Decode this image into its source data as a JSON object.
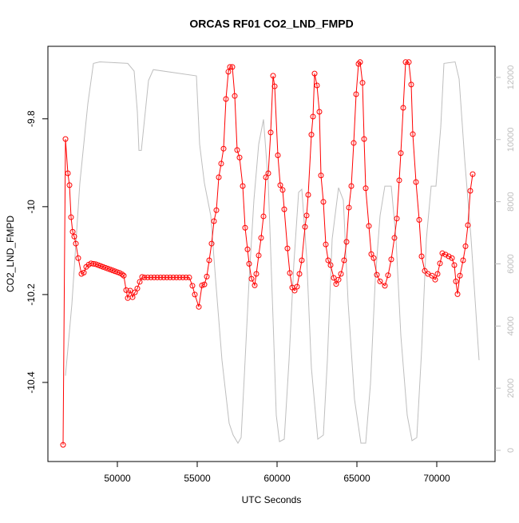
{
  "chart_data": {
    "type": "line",
    "title": "ORCAS RF01 CO2_LND_FMPD",
    "x_label": "UTC Seconds",
    "y_label": "CO2_LND_FMPD",
    "xlim": [
      45650,
      73650
    ],
    "xticks": [
      50000,
      55000,
      60000,
      65000,
      70000
    ],
    "ylim": [
      -10.58,
      -9.635
    ],
    "yticks": [
      -10.4,
      -10.2,
      -10.0,
      -9.8
    ],
    "y2lim": [
      -360,
      13000
    ],
    "y2ticks": [
      0,
      2000,
      4000,
      6000,
      8000,
      10000,
      12000
    ],
    "series": [
      {
        "color": "#ff0000",
        "marker": "circle",
        "x": [
          46600,
          46750,
          46900,
          47000,
          47100,
          47200,
          47300,
          47400,
          47550,
          47750,
          47900,
          48050,
          48200,
          48350,
          48500,
          48650,
          48800,
          48950,
          49100,
          49250,
          49400,
          49550,
          49700,
          49850,
          50000,
          50150,
          50300,
          50400,
          50550,
          50650,
          50800,
          50950,
          51100,
          51250,
          51400,
          51550,
          51700,
          51900,
          52100,
          52300,
          52500,
          52700,
          52900,
          53100,
          53300,
          53500,
          53700,
          53900,
          54100,
          54300,
          54500,
          54700,
          54850,
          55100,
          55300,
          55450,
          55600,
          55750,
          55900,
          56050,
          56200,
          56350,
          56500,
          56650,
          56800,
          56950,
          57050,
          57200,
          57350,
          57500,
          57650,
          57850,
          58000,
          58150,
          58250,
          58400,
          58600,
          58700,
          58850,
          59000,
          59150,
          59300,
          59450,
          59600,
          59750,
          59850,
          60050,
          60200,
          60350,
          60450,
          60650,
          60800,
          60950,
          61100,
          61250,
          61400,
          61550,
          61750,
          61850,
          61950,
          62150,
          62250,
          62350,
          62500,
          62650,
          62750,
          62900,
          63050,
          63200,
          63350,
          63550,
          63700,
          63850,
          64000,
          64200,
          64350,
          64500,
          64650,
          64800,
          64950,
          65100,
          65200,
          65350,
          65450,
          65550,
          65750,
          65900,
          66050,
          66250,
          66450,
          66750,
          66950,
          67150,
          67350,
          67500,
          67650,
          67750,
          67900,
          68050,
          68250,
          68400,
          68500,
          68700,
          68900,
          69050,
          69250,
          69450,
          69700,
          69900,
          70050,
          70200,
          70350,
          70550,
          70750,
          70950,
          71100,
          71200,
          71300,
          71450,
          71650,
          71800,
          71950,
          72100,
          72250
        ],
        "values": [
          -10.542,
          -9.846,
          -9.924,
          -9.951,
          -10.024,
          -10.057,
          -10.068,
          -10.084,
          -10.117,
          -10.153,
          -10.15,
          -10.137,
          -10.132,
          -10.129,
          -10.13,
          -10.131,
          -10.133,
          -10.135,
          -10.137,
          -10.139,
          -10.141,
          -10.143,
          -10.145,
          -10.147,
          -10.149,
          -10.151,
          -10.154,
          -10.157,
          -10.19,
          -10.208,
          -10.191,
          -10.206,
          -10.195,
          -10.186,
          -10.171,
          -10.16,
          -10.161,
          -10.161,
          -10.161,
          -10.161,
          -10.161,
          -10.161,
          -10.161,
          -10.161,
          -10.161,
          -10.161,
          -10.161,
          -10.161,
          -10.161,
          -10.161,
          -10.161,
          -10.18,
          -10.2,
          -10.228,
          -10.179,
          -10.177,
          -10.159,
          -10.122,
          -10.084,
          -10.033,
          -10.008,
          -9.933,
          -9.902,
          -9.868,
          -9.755,
          -9.693,
          -9.682,
          -9.682,
          -9.748,
          -9.871,
          -9.888,
          -9.953,
          -10.048,
          -10.097,
          -10.13,
          -10.164,
          -10.179,
          -10.153,
          -10.111,
          -10.071,
          -10.022,
          -9.933,
          -9.924,
          -9.831,
          -9.702,
          -9.726,
          -9.883,
          -9.951,
          -9.962,
          -10.006,
          -10.095,
          -10.151,
          -10.184,
          -10.191,
          -10.182,
          -10.153,
          -10.122,
          -10.046,
          -10.02,
          -9.973,
          -9.836,
          -9.795,
          -9.697,
          -9.724,
          -9.784,
          -9.929,
          -9.989,
          -10.086,
          -10.122,
          -10.133,
          -10.162,
          -10.176,
          -10.166,
          -10.153,
          -10.122,
          -10.08,
          -10.002,
          -9.953,
          -9.855,
          -9.744,
          -9.675,
          -9.671,
          -9.718,
          -9.846,
          -9.958,
          -10.044,
          -10.108,
          -10.117,
          -10.155,
          -10.17,
          -10.18,
          -10.156,
          -10.12,
          -10.071,
          -10.027,
          -9.94,
          -9.878,
          -9.775,
          -9.671,
          -9.671,
          -9.722,
          -9.835,
          -9.944,
          -10.03,
          -10.113,
          -10.146,
          -10.153,
          -10.157,
          -10.166,
          -10.153,
          -10.129,
          -10.106,
          -10.109,
          -10.113,
          -10.117,
          -10.133,
          -10.17,
          -10.199,
          -10.157,
          -10.122,
          -10.09,
          -10.042,
          -9.964,
          -9.926
        ]
      },
      {
        "color": "#bebebe",
        "axis": "y2",
        "x": [
          46750,
          47150,
          47650,
          48150,
          48500,
          48900,
          50650,
          51050,
          51250,
          51350,
          51500,
          51650,
          51950,
          52250,
          54950,
          55150,
          55450,
          55850,
          56150,
          56550,
          57000,
          57250,
          57550,
          57750,
          57950,
          58250,
          58550,
          58850,
          59150,
          59450,
          59750,
          59950,
          60150,
          60450,
          60750,
          61050,
          61350,
          61550,
          61850,
          62150,
          62550,
          62900,
          63150,
          63450,
          63850,
          64150,
          64450,
          64850,
          65250,
          65550,
          65850,
          66150,
          66450,
          66750,
          67150,
          67450,
          67750,
          68150,
          68450,
          68750,
          69050,
          69350,
          69650,
          69950,
          70250,
          70450,
          71150,
          71400,
          71750,
          72150,
          72650
        ],
        "values": [
          2400,
          4700,
          8600,
          11150,
          12450,
          12500,
          12450,
          12200,
          10900,
          9650,
          9650,
          10400,
          11900,
          12250,
          12050,
          9850,
          8600,
          7550,
          5500,
          2900,
          870,
          490,
          230,
          410,
          2400,
          5500,
          8050,
          9850,
          10650,
          8600,
          4200,
          1130,
          280,
          360,
          2900,
          6000,
          8300,
          8400,
          6250,
          2650,
          360,
          490,
          2900,
          6800,
          8450,
          8050,
          4750,
          1640,
          230,
          230,
          2150,
          5500,
          7550,
          8500,
          8500,
          6800,
          3700,
          1130,
          310,
          410,
          3200,
          6800,
          8500,
          8500,
          10400,
          12450,
          12500,
          11950,
          9350,
          6800,
          2900
        ]
      }
    ]
  }
}
